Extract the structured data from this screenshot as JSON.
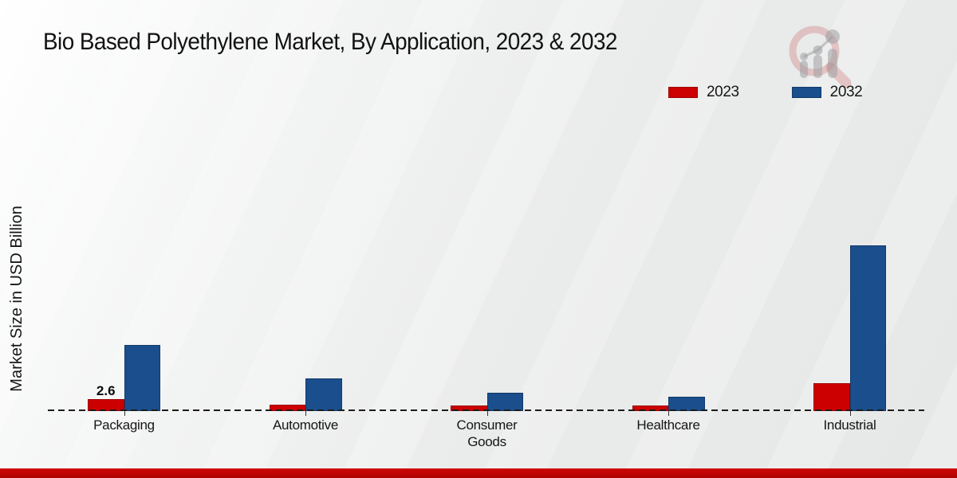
{
  "header": {
    "title": "Bio Based Polyethylene Market, By Application, 2023 & 2032"
  },
  "axes": {
    "y_label": "Market Size in USD Billion"
  },
  "chart_data": {
    "type": "bar",
    "title": "Bio Based Polyethylene Market, By Application, 2023 & 2032",
    "xlabel": "",
    "ylabel": "Market Size in USD Billion",
    "categories": [
      "Packaging",
      "Automotive",
      "Consumer Goods",
      "Healthcare",
      "Industrial"
    ],
    "series": [
      {
        "name": "2023",
        "color": "#cc0000",
        "border_color": "#9e0000",
        "values": [
          2.6,
          1.4,
          1.2,
          1.1,
          6.2
        ]
      },
      {
        "name": "2032",
        "color": "#1a4e8c",
        "border_color": "#123a6b",
        "values": [
          14.8,
          7.2,
          4.0,
          3.2,
          37.2
        ]
      }
    ],
    "annotations": [
      {
        "text": "2.6",
        "series_index": 0,
        "category_index": 0
      }
    ],
    "units": "USD Billion",
    "ylim": [
      0,
      40
    ],
    "grid": false,
    "legend_position": "top-right",
    "baseline_style": "dashed-black"
  },
  "watermark": {
    "icon": "magnifier-bar-chart-logo"
  },
  "footer": {
    "accent_color": "#c00505"
  }
}
